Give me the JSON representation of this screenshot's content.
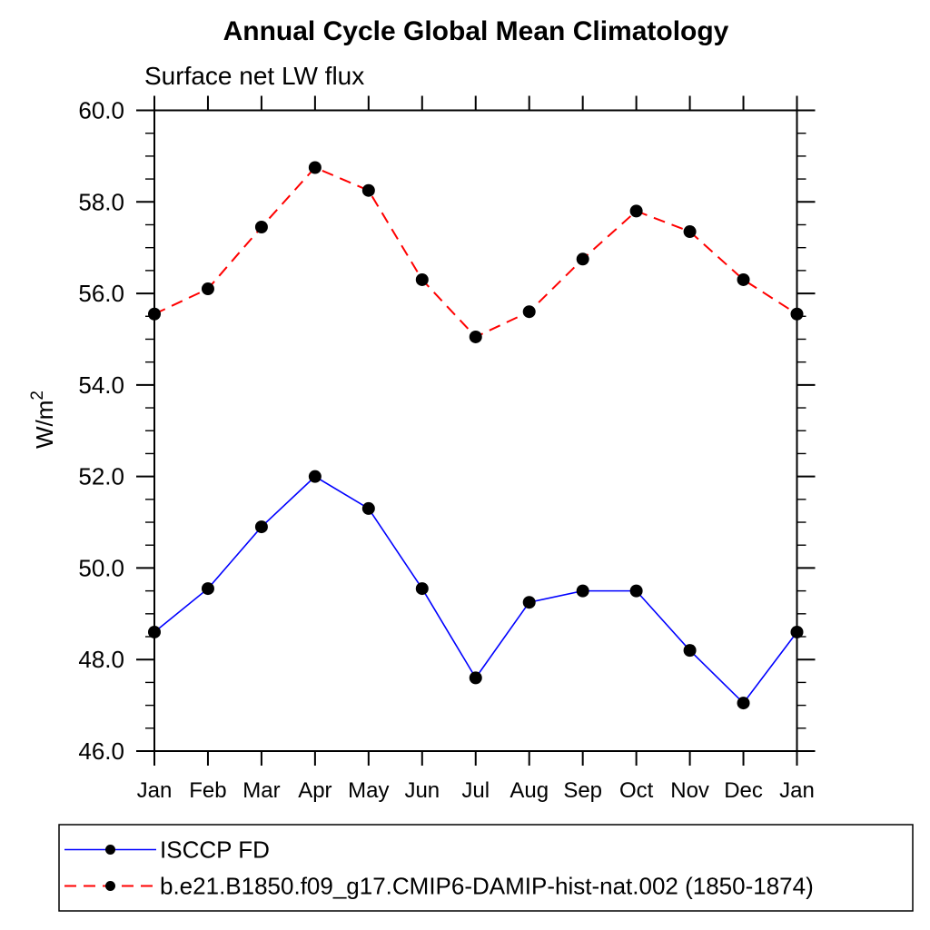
{
  "chart_data": {
    "type": "line",
    "title": "Annual Cycle Global Mean Climatology",
    "subtitle": "Surface net LW flux",
    "ylabel": "W/m²",
    "xlabel": "",
    "categories": [
      "Jan",
      "Feb",
      "Mar",
      "Apr",
      "May",
      "Jun",
      "Jul",
      "Aug",
      "Sep",
      "Oct",
      "Nov",
      "Dec",
      "Jan"
    ],
    "ylim": [
      46.0,
      60.0
    ],
    "y_major_step": 2.0,
    "y_minor_step": 0.5,
    "y_tick_labels": [
      "46.0",
      "48.0",
      "50.0",
      "52.0",
      "54.0",
      "56.0",
      "58.0",
      "60.0"
    ],
    "grid": false,
    "legend_position": "bottom",
    "marker": "filled-circle",
    "marker_color": "#000000",
    "series": [
      {
        "name": "ISCCP FD",
        "color": "#0000ff",
        "line_style": "solid",
        "values": [
          48.6,
          49.55,
          50.9,
          52.0,
          51.3,
          49.55,
          47.6,
          49.25,
          49.5,
          49.5,
          48.2,
          47.05,
          48.6
        ]
      },
      {
        "name": "b.e21.B1850.f09_g17.CMIP6-DAMIP-hist-nat.002 (1850-1874)",
        "color": "#ff0000",
        "line_style": "dashed",
        "values": [
          55.55,
          56.1,
          57.45,
          58.75,
          58.25,
          56.3,
          55.05,
          55.6,
          56.75,
          57.8,
          57.35,
          56.3,
          55.55
        ]
      }
    ]
  }
}
